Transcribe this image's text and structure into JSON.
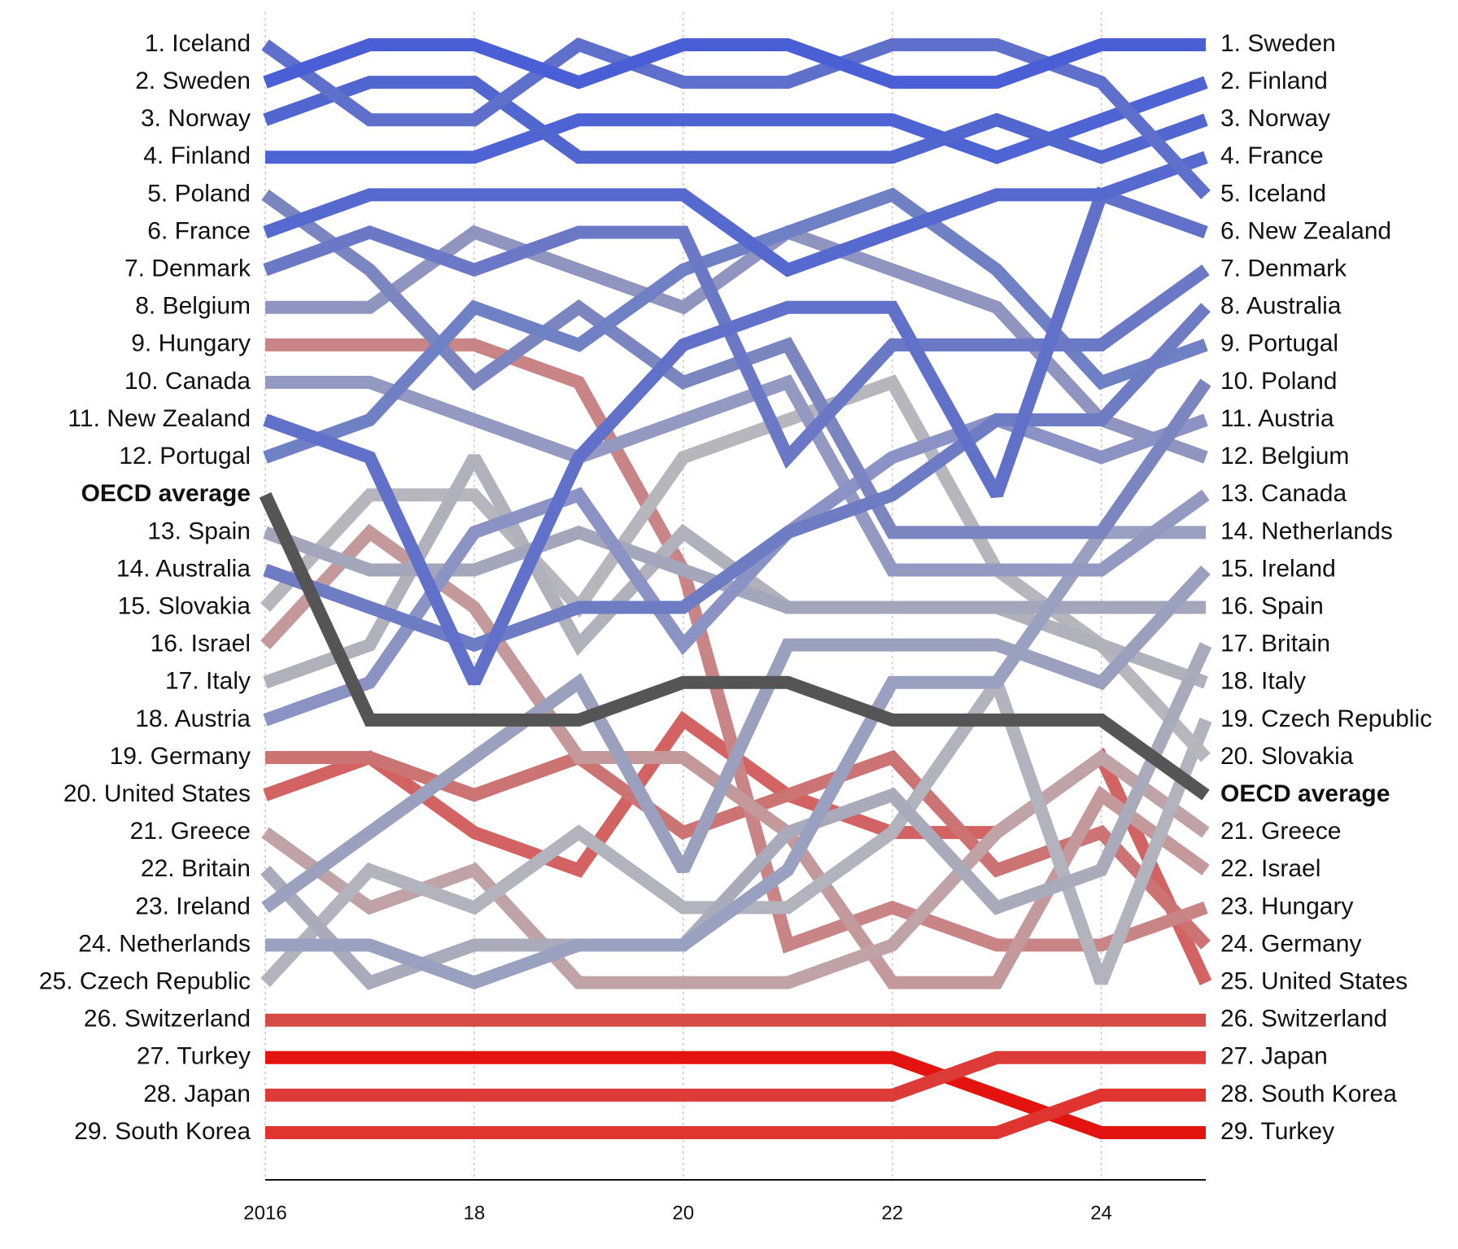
{
  "chart_data": {
    "type": "bump",
    "x": [
      2016,
      2017,
      2018,
      2019,
      2020,
      2021,
      2022,
      2023,
      2024,
      2025
    ],
    "xlim": [
      2016,
      2025
    ],
    "xticks": [
      2016,
      {
        "value": 2018,
        "label": "18"
      },
      {
        "value": 2020,
        "label": "20"
      },
      {
        "value": 2022,
        "label": "22"
      },
      {
        "value": 2024,
        "label": "24"
      }
    ],
    "ylim": [
      1,
      30
    ],
    "y_inverted": true,
    "grid": true,
    "series": [
      {
        "start_label": "27. Turkey",
        "end_label": "29. Turkey",
        "color": "#e3140f",
        "values": [
          28,
          28,
          28,
          28,
          28,
          28,
          28,
          29,
          30,
          30
        ]
      },
      {
        "start_label": "28. Japan",
        "end_label": "27. Japan",
        "color": "#dd3b37",
        "values": [
          29,
          29,
          29,
          29,
          29,
          29,
          29,
          28,
          28,
          28
        ]
      },
      {
        "start_label": "29. South Korea",
        "end_label": "28. South Korea",
        "color": "#e03430",
        "values": [
          30,
          30,
          30,
          30,
          30,
          30,
          30,
          30,
          29,
          29
        ]
      },
      {
        "start_label": "26. Switzerland",
        "end_label": "26. Switzerland",
        "color": "#d64a48",
        "values": [
          27,
          27,
          27,
          27,
          27,
          27,
          27,
          27,
          27,
          27
        ]
      },
      {
        "start_label": "20. United States",
        "end_label": "25. United States",
        "color": "#d36363",
        "values": [
          21,
          20,
          22,
          23,
          19,
          21,
          22,
          22,
          20,
          26
        ]
      },
      {
        "start_label": "19. Germany",
        "end_label": "24. Germany",
        "color": "#cc7373",
        "values": [
          20,
          20,
          21,
          20,
          22,
          21,
          20,
          23,
          22,
          25
        ]
      },
      {
        "start_label": "9. Hungary",
        "end_label": "23. Hungary",
        "color": "#c98585",
        "values": [
          9,
          9,
          9,
          10,
          15,
          25,
          24,
          25,
          25,
          24
        ]
      },
      {
        "start_label": "16. Israel",
        "end_label": "22. Israel",
        "color": "#c4999b",
        "values": [
          17,
          14,
          16,
          20,
          20,
          22,
          26,
          26,
          21,
          23
        ]
      },
      {
        "start_label": "21. Greece",
        "end_label": "21. Greece",
        "color": "#c0a3a6",
        "values": [
          22,
          24,
          23,
          26,
          26,
          26,
          25,
          22,
          20,
          22
        ]
      },
      {
        "start_label": "25. Czech Republic",
        "end_label": "19. Czech Republic",
        "color": "#b2b3bd",
        "values": [
          26,
          23,
          24,
          22,
          24,
          24,
          22,
          18,
          26,
          19
        ]
      },
      {
        "start_label": "15. Slovakia",
        "end_label": "20. Slovakia",
        "color": "#b6b6bc",
        "values": [
          16,
          13,
          13,
          16,
          12,
          11,
          10,
          15,
          17,
          20
        ]
      },
      {
        "start_label": "17. Italy",
        "end_label": "18. Italy",
        "color": "#b0b1bb",
        "values": [
          18,
          17,
          12,
          17,
          14,
          16,
          16,
          16,
          17,
          18
        ]
      },
      {
        "start_label": "22. Britain",
        "end_label": "17. Britain",
        "color": "#a9abba",
        "values": [
          23,
          26,
          25,
          25,
          25,
          22,
          21,
          24,
          23,
          17
        ]
      },
      {
        "start_label": "13. Spain",
        "end_label": "16. Spain",
        "color": "#a4a7bc",
        "values": [
          14,
          15,
          15,
          14,
          15,
          16,
          16,
          16,
          16,
          16
        ]
      },
      {
        "start_label": "23. Ireland",
        "end_label": "15. Ireland",
        "color": "#9ba0be",
        "values": [
          24,
          22,
          20,
          18,
          23,
          17,
          17,
          17,
          18,
          15
        ]
      },
      {
        "start_label": "24. Netherlands",
        "end_label": "14. Netherlands",
        "color": "#9aa0c0",
        "values": [
          25,
          25,
          26,
          25,
          25,
          23,
          18,
          18,
          14,
          14
        ]
      },
      {
        "start_label": "10. Canada",
        "end_label": "13. Canada",
        "color": "#9399c0",
        "values": [
          10,
          10,
          11,
          12,
          11,
          10,
          15,
          15,
          15,
          13
        ]
      },
      {
        "start_label": "8. Belgium",
        "end_label": "12. Belgium",
        "color": "#8f95be",
        "values": [
          8,
          8,
          6,
          7,
          8,
          6,
          7,
          8,
          11,
          12
        ]
      },
      {
        "start_label": "18. Austria",
        "end_label": "11. Austria",
        "color": "#8b93c4",
        "values": [
          19,
          18,
          14,
          13,
          17,
          14,
          12,
          11,
          12,
          11
        ]
      },
      {
        "start_label": "5. Poland",
        "end_label": "10. Poland",
        "color": "#7b86c0",
        "values": [
          5,
          7,
          10,
          8,
          10,
          9,
          14,
          14,
          14,
          10
        ]
      },
      {
        "start_label": "12. Portugal",
        "end_label": "9. Portugal",
        "color": "#7080c4",
        "values": [
          12,
          11,
          8,
          9,
          7,
          6,
          5,
          7,
          10,
          9
        ]
      },
      {
        "start_label": "14. Australia",
        "end_label": "8. Australia",
        "color": "#6e7cc4",
        "values": [
          15,
          16,
          17,
          16,
          16,
          14,
          13,
          11,
          11,
          8
        ]
      },
      {
        "start_label": "7. Denmark",
        "end_label": "7. Denmark",
        "color": "#6a78c6",
        "values": [
          7,
          6,
          7,
          6,
          6,
          12,
          9,
          9,
          9,
          7
        ]
      },
      {
        "start_label": "11. New Zealand",
        "end_label": "6. New Zealand",
        "color": "#6171c9",
        "values": [
          11,
          12,
          18,
          12,
          9,
          8,
          8,
          13,
          5,
          6
        ]
      },
      {
        "start_label": "6. France",
        "end_label": "4. France",
        "color": "#5669cf",
        "values": [
          6,
          5,
          5,
          5,
          5,
          7,
          6,
          5,
          5,
          4
        ]
      },
      {
        "start_label": "4. Finland",
        "end_label": "2. Finland",
        "color": "#4e63d4",
        "values": [
          4,
          4,
          4,
          3,
          3,
          3,
          3,
          4,
          3,
          2
        ]
      },
      {
        "start_label": "3. Norway",
        "end_label": "3. Norway",
        "color": "#5266d0",
        "values": [
          3,
          2,
          2,
          4,
          4,
          4,
          4,
          3,
          4,
          3
        ]
      },
      {
        "start_label": "1. Iceland",
        "end_label": "5. Iceland",
        "color": "#5e6fcc",
        "values": [
          1,
          3,
          3,
          1,
          2,
          2,
          1,
          1,
          2,
          5
        ]
      },
      {
        "start_label": "2. Sweden",
        "end_label": "1. Sweden",
        "color": "#4a5fd6",
        "values": [
          2,
          1,
          1,
          2,
          1,
          1,
          2,
          2,
          1,
          1
        ]
      },
      {
        "start_label": "OECD average",
        "end_label": "OECD average",
        "color": "#555555",
        "bold": true,
        "values": [
          13,
          19,
          19,
          19,
          18,
          18,
          19,
          19,
          19,
          21
        ]
      }
    ]
  }
}
